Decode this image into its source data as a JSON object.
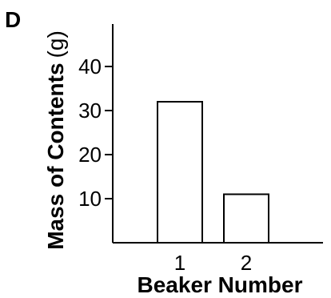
{
  "panel_label": "D",
  "chart_data": {
    "type": "bar",
    "title": "",
    "categories": [
      "1",
      "2"
    ],
    "values": [
      32,
      11
    ],
    "xlabel": "Beaker Number",
    "ylabel": "Mass of Contents",
    "ylabel_unit": "(g)",
    "yticks": [
      10,
      20,
      30,
      40
    ],
    "ylim": [
      0,
      50
    ],
    "grid": false,
    "legend": "none",
    "bar_fill": "#ffffff",
    "bar_stroke": "#000000"
  }
}
